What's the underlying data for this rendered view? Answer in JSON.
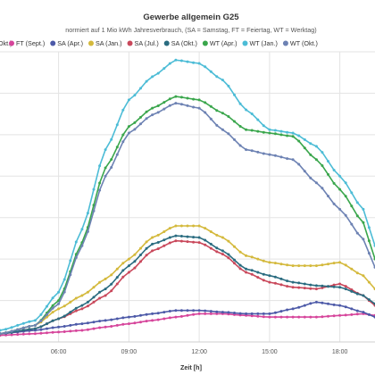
{
  "chart_data": {
    "type": "line",
    "title": "Gewerbe allgemein G25",
    "subtitle": "normiert auf 1 Mio kWh Jahresverbrauch, (SA = Samstag,  FT = Feiertag, WT = Werktag)",
    "xlabel": "Zeit [h]",
    "ylabel": "",
    "xlim": [
      "03:30",
      "19:30"
    ],
    "ylim": [
      0,
      175
    ],
    "grid": true,
    "legend_position": "top",
    "x_ticks": [
      "06:00",
      "09:00",
      "12:00",
      "15:00",
      "18:00"
    ],
    "legend_partial_left": "Okt.)",
    "series": [
      {
        "name": "FT (Sept.)",
        "color": "#d6459b",
        "x": [
          "03:30",
          "05:00",
          "06:00",
          "07:00",
          "08:00",
          "09:00",
          "10:00",
          "11:00",
          "12:00",
          "13:00",
          "14:00",
          "15:00",
          "16:00",
          "17:00",
          "18:00",
          "19:00",
          "19:30"
        ],
        "y": [
          4,
          5,
          6,
          7,
          9,
          11,
          13,
          15,
          17,
          17,
          16,
          15,
          15,
          15,
          16,
          17,
          16
        ]
      },
      {
        "name": "SA (Apr.)",
        "color": "#4d5aa8",
        "x": [
          "03:30",
          "05:00",
          "06:00",
          "07:00",
          "08:00",
          "09:00",
          "10:00",
          "11:00",
          "12:00",
          "13:00",
          "14:00",
          "15:00",
          "16:00",
          "17:00",
          "18:00",
          "19:00",
          "19:30"
        ],
        "y": [
          5,
          7,
          9,
          11,
          13,
          15,
          17,
          19,
          19,
          18,
          17,
          17,
          20,
          24,
          22,
          18,
          15
        ]
      },
      {
        "name": "SA (Jan.)",
        "color": "#d4b93c",
        "x": [
          "03:30",
          "05:00",
          "06:00",
          "07:00",
          "08:00",
          "09:00",
          "10:00",
          "11:00",
          "12:00",
          "13:00",
          "14:00",
          "15:00",
          "16:00",
          "17:00",
          "18:00",
          "19:00",
          "19:30"
        ],
        "y": [
          5,
          10,
          20,
          28,
          38,
          50,
          63,
          70,
          70,
          63,
          52,
          48,
          46,
          46,
          48,
          40,
          32
        ]
      },
      {
        "name": "SA (Jul.)",
        "color": "#c9485b",
        "x": [
          "03:30",
          "05:00",
          "06:00",
          "07:00",
          "08:00",
          "09:00",
          "10:00",
          "11:00",
          "12:00",
          "13:00",
          "14:00",
          "15:00",
          "16:00",
          "17:00",
          "18:00",
          "19:00",
          "19:30"
        ],
        "y": [
          5,
          8,
          14,
          20,
          28,
          42,
          55,
          61,
          60,
          53,
          42,
          36,
          33,
          32,
          35,
          28,
          22
        ]
      },
      {
        "name": "SA (Okt.)",
        "color": "#2a6c80",
        "x": [
          "03:30",
          "05:00",
          "06:00",
          "07:00",
          "08:00",
          "09:00",
          "10:00",
          "11:00",
          "12:00",
          "13:00",
          "14:00",
          "15:00",
          "16:00",
          "17:00",
          "18:00",
          "19:00",
          "19:30"
        ],
        "y": [
          5,
          8,
          14,
          22,
          32,
          46,
          59,
          64,
          63,
          55,
          44,
          40,
          36,
          34,
          33,
          28,
          23
        ]
      },
      {
        "name": "WT (Apr.)",
        "color": "#3aa64c",
        "x": [
          "03:30",
          "05:00",
          "06:00",
          "07:00",
          "08:00",
          "09:00",
          "10:00",
          "11:00",
          "12:00",
          "13:00",
          "14:00",
          "15:00",
          "16:00",
          "17:00",
          "18:00",
          "19:00",
          "19:30"
        ],
        "y": [
          5,
          10,
          25,
          60,
          105,
          130,
          141,
          148,
          146,
          138,
          128,
          126,
          124,
          110,
          92,
          72,
          50
        ]
      },
      {
        "name": "WT (Jan.)",
        "color": "#4cbcd6",
        "x": [
          "03:30",
          "05:00",
          "06:00",
          "07:00",
          "08:00",
          "09:00",
          "10:00",
          "11:00",
          "12:00",
          "13:00",
          "14:00",
          "15:00",
          "16:00",
          "17:00",
          "18:00",
          "19:00",
          "19:30"
        ],
        "y": [
          7,
          13,
          30,
          68,
          116,
          146,
          160,
          170,
          168,
          158,
          140,
          128,
          126,
          118,
          100,
          80,
          58
        ]
      },
      {
        "name": "WT (Okt.)",
        "color": "#6d82b3",
        "x": [
          "03:30",
          "05:00",
          "06:00",
          "07:00",
          "08:00",
          "09:00",
          "10:00",
          "11:00",
          "12:00",
          "13:00",
          "14:00",
          "15:00",
          "16:00",
          "17:00",
          "18:00",
          "19:00",
          "19:30"
        ],
        "y": [
          5,
          10,
          23,
          58,
          100,
          126,
          137,
          144,
          141,
          128,
          116,
          113,
          110,
          96,
          80,
          62,
          45
        ]
      }
    ]
  }
}
